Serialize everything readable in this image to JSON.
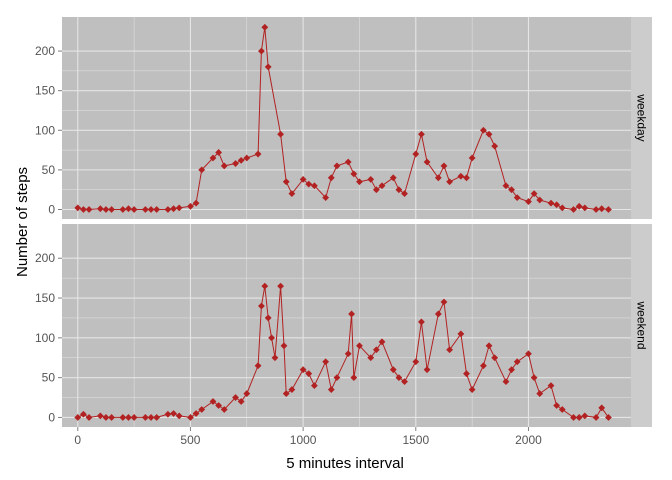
{
  "chart_data": {
    "type": "line",
    "xlabel": "5 minutes interval",
    "ylabel": "Number of steps",
    "xlim": [
      -70,
      2455
    ],
    "ylim": [
      -12,
      243
    ],
    "x_ticks": [
      0,
      500,
      1000,
      1500,
      2000
    ],
    "y_ticks": [
      0,
      50,
      100,
      150,
      200
    ],
    "grid": true,
    "facet": "rows",
    "colors": {
      "series": "#B22222",
      "panel_bg": "#BFBFBF",
      "strip_bg": "#CCCCCC",
      "grid": "#E5E5E5"
    },
    "panels": [
      {
        "label": "weekday",
        "x": [
          0,
          25,
          50,
          100,
          125,
          150,
          200,
          225,
          250,
          300,
          325,
          350,
          400,
          425,
          450,
          500,
          525,
          550,
          600,
          625,
          650,
          700,
          725,
          750,
          800,
          815,
          830,
          845,
          900,
          925,
          950,
          1000,
          1025,
          1050,
          1100,
          1125,
          1150,
          1200,
          1225,
          1250,
          1300,
          1325,
          1350,
          1400,
          1425,
          1450,
          1500,
          1525,
          1550,
          1600,
          1625,
          1650,
          1700,
          1725,
          1750,
          1800,
          1825,
          1850,
          1900,
          1925,
          1950,
          2000,
          2025,
          2050,
          2100,
          2125,
          2150,
          2200,
          2225,
          2250,
          2300,
          2325,
          2355
        ],
        "values": [
          2,
          0,
          0,
          1,
          0,
          0,
          0,
          1,
          0,
          0,
          0,
          0,
          0,
          1,
          2,
          4,
          8,
          50,
          65,
          72,
          55,
          58,
          62,
          65,
          70,
          200,
          230,
          180,
          95,
          35,
          20,
          38,
          32,
          30,
          15,
          40,
          55,
          60,
          45,
          35,
          38,
          25,
          30,
          40,
          25,
          20,
          70,
          95,
          60,
          40,
          55,
          35,
          42,
          40,
          65,
          100,
          95,
          80,
          30,
          25,
          15,
          10,
          20,
          12,
          8,
          6,
          2,
          0,
          4,
          2,
          0,
          1,
          0
        ]
      },
      {
        "label": "weekend",
        "x": [
          0,
          25,
          50,
          100,
          125,
          150,
          200,
          225,
          250,
          300,
          325,
          350,
          400,
          425,
          450,
          500,
          525,
          550,
          600,
          625,
          650,
          700,
          725,
          750,
          800,
          815,
          830,
          845,
          860,
          875,
          900,
          915,
          925,
          950,
          1000,
          1025,
          1050,
          1100,
          1125,
          1150,
          1200,
          1215,
          1225,
          1250,
          1300,
          1325,
          1350,
          1400,
          1425,
          1450,
          1500,
          1525,
          1550,
          1600,
          1625,
          1650,
          1700,
          1725,
          1750,
          1800,
          1825,
          1850,
          1900,
          1925,
          1950,
          2000,
          2025,
          2050,
          2100,
          2125,
          2150,
          2200,
          2225,
          2250,
          2300,
          2325,
          2355
        ],
        "values": [
          0,
          4,
          0,
          2,
          0,
          0,
          0,
          0,
          0,
          0,
          0,
          0,
          4,
          5,
          2,
          0,
          5,
          10,
          20,
          15,
          10,
          25,
          20,
          30,
          65,
          140,
          165,
          125,
          100,
          75,
          165,
          90,
          30,
          35,
          60,
          55,
          40,
          70,
          35,
          50,
          80,
          130,
          50,
          90,
          75,
          85,
          95,
          60,
          50,
          45,
          70,
          120,
          60,
          130,
          145,
          85,
          105,
          55,
          35,
          65,
          90,
          75,
          45,
          60,
          70,
          80,
          50,
          30,
          40,
          15,
          10,
          0,
          0,
          2,
          0,
          12,
          0
        ]
      }
    ]
  }
}
